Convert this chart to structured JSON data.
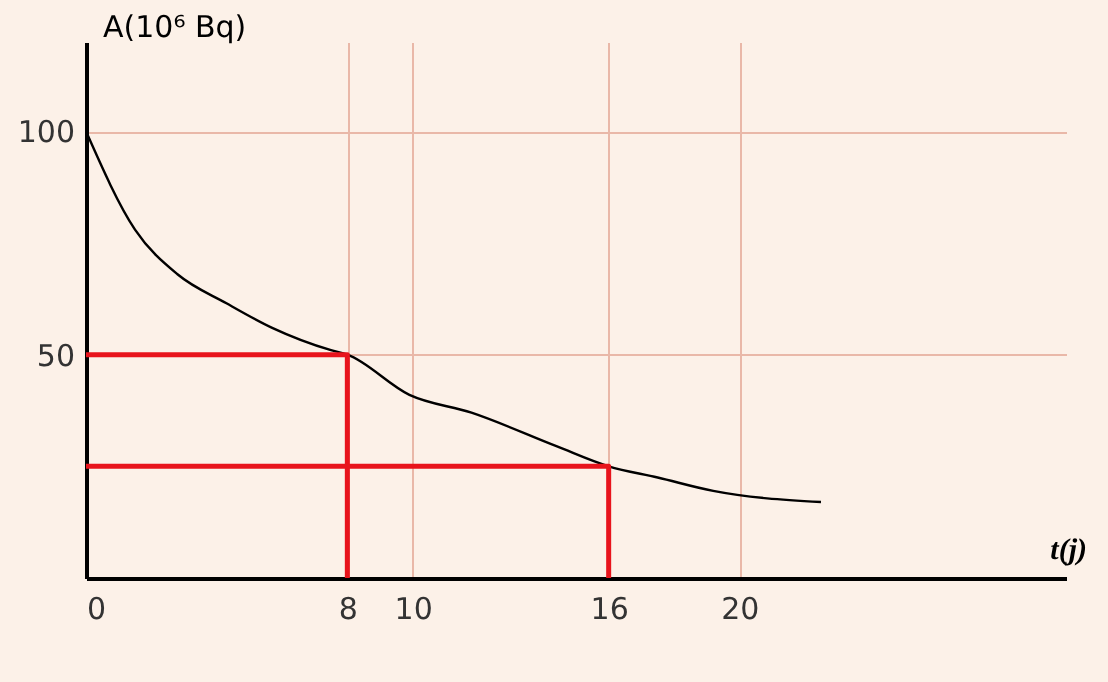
{
  "chart_data": {
    "type": "line",
    "xlabel": "t(j)",
    "ylabel": "A(10⁶ Bq)",
    "xlim": [
      0,
      30
    ],
    "ylim": [
      0,
      120
    ],
    "xticks": [
      0,
      8,
      10,
      16,
      20
    ],
    "yticks": [
      50,
      100
    ],
    "grid": true,
    "marker": "none",
    "line_style": "solid",
    "series": [
      {
        "color": "#000000",
        "x": [
          0,
          1.5,
          2.8,
          4.3,
          5.7,
          7.5,
          8,
          9.9,
          11.8,
          14.4,
          16,
          17.5,
          19.2,
          22.5
        ],
        "values": [
          100,
          78,
          68,
          61.5,
          56,
          51,
          50,
          41,
          37,
          29.5,
          25,
          22.5,
          19.5,
          17
        ]
      },
      {
        "color": "#e8141c",
        "x": [
          0,
          8,
          8
        ],
        "values": [
          50,
          50,
          0
        ]
      },
      {
        "color": "#e8141c",
        "x": [
          0,
          16,
          16
        ],
        "values": [
          25,
          25,
          0
        ]
      }
    ]
  }
}
